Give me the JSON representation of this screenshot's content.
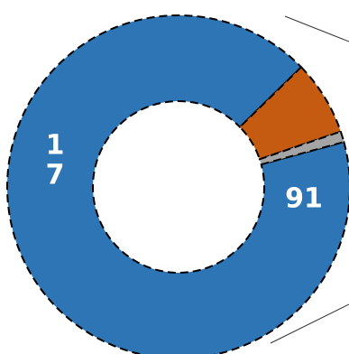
{
  "chart_data": {
    "type": "pie",
    "subtype": "donut",
    "title": "",
    "categories": [
      "",
      "",
      ""
    ],
    "values": [
      91,
      7,
      1
    ],
    "labels": [
      "91",
      "7",
      "1"
    ],
    "colors": [
      "#2e75b6",
      "#c55a11",
      "#a5a5a5"
    ],
    "segment_outline": "dashed black",
    "legend": "none"
  }
}
